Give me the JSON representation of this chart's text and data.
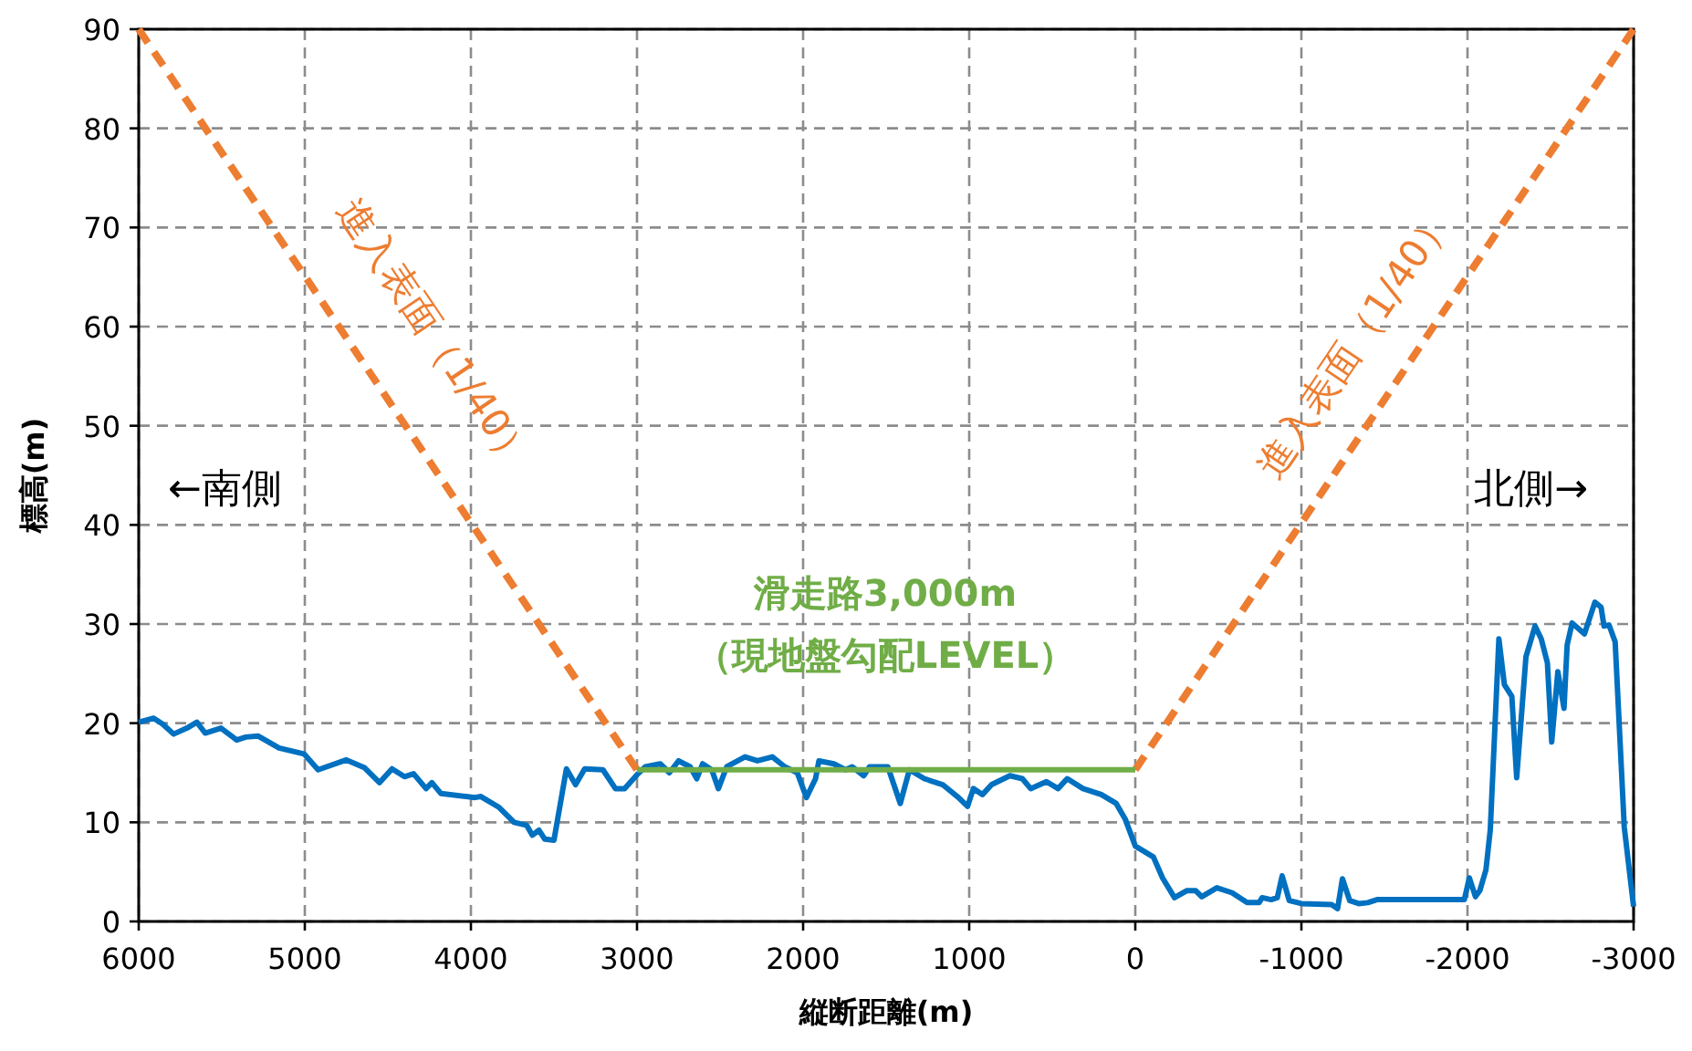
{
  "chart_data": {
    "type": "line",
    "xlabel": "縦断距離(m)",
    "ylabel": "標高(m)",
    "xlim": [
      6000,
      -3000
    ],
    "xticks": [
      6000,
      5000,
      4000,
      3000,
      2000,
      1000,
      0,
      -1000,
      -2000,
      -3000
    ],
    "ylim": [
      0,
      90
    ],
    "yticks": [
      0,
      10,
      20,
      30,
      40,
      50,
      60,
      70,
      80,
      90
    ],
    "grid": true,
    "series": [
      {
        "color": "#0070c0",
        "line_style": "solid",
        "x": [
          6000,
          5910,
          5855,
          5790,
          5710,
          5650,
          5600,
          5505,
          5410,
          5355,
          5280,
          5155,
          5005,
          4920,
          4750,
          4640,
          4550,
          4475,
          4400,
          4345,
          4270,
          4235,
          4180,
          4030,
          3975,
          3940,
          3830,
          3740,
          3665,
          3630,
          3590,
          3555,
          3500,
          3425,
          3370,
          3315,
          3205,
          3130,
          3075,
          3000,
          2950,
          2860,
          2805,
          2750,
          2680,
          2640,
          2605,
          2550,
          2510,
          2460,
          2350,
          2275,
          2185,
          2110,
          2035,
          1980,
          1925,
          1905,
          1815,
          1745,
          1705,
          1635,
          1600,
          1490,
          1415,
          1360,
          1270,
          1160,
          1065,
          1010,
          975,
          920,
          865,
          755,
          680,
          630,
          535,
          465,
          410,
          315,
          205,
          115,
          60,
          0,
          -109,
          -164,
          -236,
          -309,
          -364,
          -400,
          -491,
          -582,
          -673,
          -745,
          -764,
          -818,
          -855,
          -884,
          -927,
          -1000,
          -1182,
          -1218,
          -1247,
          -1291,
          -1345,
          -1400,
          -1455,
          -1981,
          -2011,
          -2048,
          -2074,
          -2111,
          -2137,
          -2189,
          -2222,
          -2267,
          -2296,
          -2352,
          -2407,
          -2444,
          -2481,
          -2507,
          -2544,
          -2581,
          -2600,
          -2630,
          -2704,
          -2767,
          -2804,
          -2822,
          -2852,
          -2889,
          -2944,
          -3000
        ],
        "values": [
          20.1,
          20.5,
          19.9,
          18.9,
          19.5,
          20.1,
          19.0,
          19.5,
          18.3,
          18.6,
          18.7,
          17.5,
          16.9,
          15.3,
          16.3,
          15.5,
          14.0,
          15.4,
          14.6,
          14.9,
          13.4,
          14.0,
          12.9,
          12.6,
          12.5,
          12.6,
          11.5,
          10.0,
          9.7,
          8.7,
          9.2,
          8.3,
          8.2,
          15.4,
          13.8,
          15.4,
          15.3,
          13.4,
          13.4,
          14.8,
          15.6,
          15.9,
          15.0,
          16.2,
          15.6,
          14.4,
          15.9,
          15.3,
          13.4,
          15.6,
          16.6,
          16.2,
          16.6,
          15.6,
          15.0,
          12.5,
          14.4,
          16.2,
          15.9,
          15.3,
          15.6,
          14.7,
          15.6,
          15.6,
          11.9,
          15.3,
          14.4,
          13.8,
          12.5,
          11.6,
          13.4,
          12.8,
          13.8,
          14.7,
          14.4,
          13.4,
          14.1,
          13.4,
          14.4,
          13.4,
          12.8,
          11.9,
          10.3,
          7.6,
          6.5,
          4.4,
          2.4,
          3.1,
          3.1,
          2.5,
          3.4,
          2.9,
          1.9,
          1.9,
          2.4,
          2.2,
          2.4,
          4.6,
          2.1,
          1.8,
          1.7,
          1.3,
          4.3,
          2.1,
          1.8,
          1.9,
          2.2,
          2.2,
          4.4,
          2.5,
          3.1,
          5.2,
          9.2,
          28.5,
          23.9,
          22.7,
          14.5,
          26.7,
          29.8,
          28.5,
          26.1,
          18.1,
          25.2,
          21.5,
          27.9,
          30.1,
          29.0,
          32.2,
          31.7,
          29.8,
          29.9,
          28.2,
          9.5,
          1.5
        ]
      },
      {
        "color": "#ed7d31",
        "line_style": "dashed",
        "x": [
          6000,
          3000
        ],
        "values": [
          90,
          15.3
        ]
      },
      {
        "color": "#ed7d31",
        "line_style": "dashed",
        "x": [
          0,
          -3000
        ],
        "values": [
          15.3,
          90
        ]
      },
      {
        "color": "#70ad47",
        "line_style": "solid",
        "x": [
          3000,
          0
        ],
        "values": [
          15.3,
          15.3
        ]
      }
    ],
    "annotations": [
      "←南側",
      "北側→",
      "滑走路3,000m",
      "（現地盤勾配LEVEL）",
      "進入表面（1/40）",
      "進入表面（1/40）"
    ]
  }
}
